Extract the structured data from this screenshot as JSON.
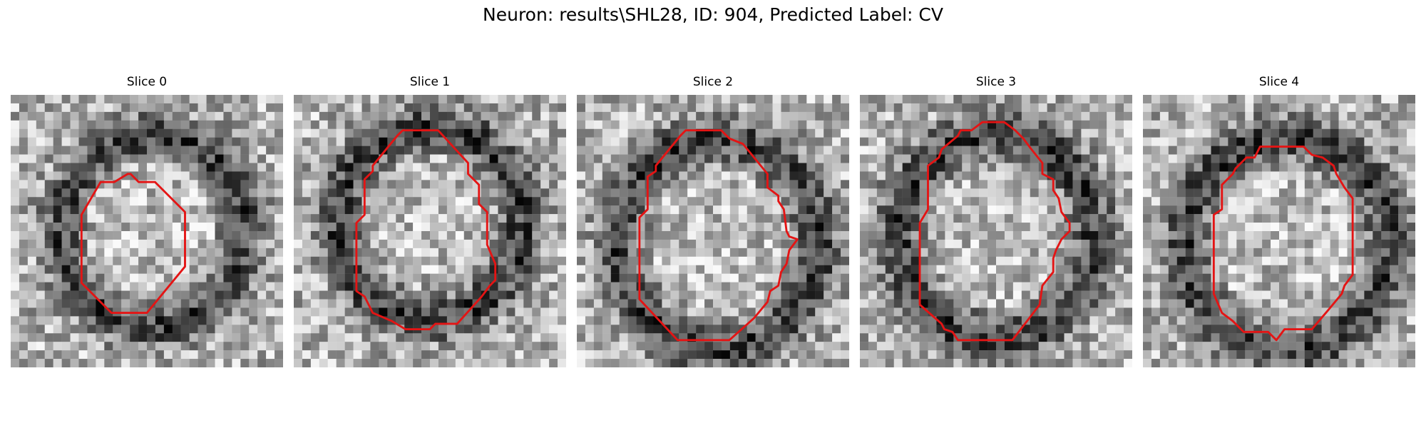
{
  "figure": {
    "title": "Neuron: results\\SHL28, ID: 904, Predicted Label: CV",
    "colormap": "gray",
    "contour_color": "#e41414",
    "background_color": "#ffffff"
  },
  "panels": [
    {
      "title": "Slice 0",
      "seed": 11,
      "ring": [
        0.52,
        0.5,
        0.43,
        0.3
      ],
      "contour": [
        [
          0.44,
          0.29
        ],
        [
          0.47,
          0.32
        ],
        [
          0.53,
          0.32
        ],
        [
          0.64,
          0.43
        ],
        [
          0.64,
          0.63
        ],
        [
          0.5,
          0.8
        ],
        [
          0.37,
          0.8
        ],
        [
          0.26,
          0.69
        ],
        [
          0.26,
          0.44
        ],
        [
          0.33,
          0.32
        ],
        [
          0.38,
          0.32
        ],
        [
          0.43,
          0.29
        ]
      ]
    },
    {
      "title": "Slice 1",
      "seed": 23,
      "ring": [
        0.5,
        0.47,
        0.43,
        0.38
      ],
      "contour": [
        [
          0.4,
          0.13
        ],
        [
          0.53,
          0.13
        ],
        [
          0.64,
          0.25
        ],
        [
          0.64,
          0.29
        ],
        [
          0.68,
          0.33
        ],
        [
          0.68,
          0.4
        ],
        [
          0.71,
          0.43
        ],
        [
          0.71,
          0.46
        ],
        [
          0.71,
          0.55
        ],
        [
          0.74,
          0.62
        ],
        [
          0.74,
          0.68
        ],
        [
          0.72,
          0.7
        ],
        [
          0.69,
          0.74
        ],
        [
          0.6,
          0.84
        ],
        [
          0.52,
          0.84
        ],
        [
          0.5,
          0.86
        ],
        [
          0.41,
          0.86
        ],
        [
          0.36,
          0.83
        ],
        [
          0.29,
          0.8
        ],
        [
          0.26,
          0.74
        ],
        [
          0.23,
          0.72
        ],
        [
          0.23,
          0.47
        ],
        [
          0.26,
          0.44
        ],
        [
          0.26,
          0.31
        ],
        [
          0.29,
          0.28
        ],
        [
          0.29,
          0.26
        ],
        [
          0.38,
          0.15
        ]
      ]
    },
    {
      "title": "Slice 2",
      "seed": 37,
      "ring": [
        0.52,
        0.55,
        0.47,
        0.42
      ],
      "contour": [
        [
          0.4,
          0.13
        ],
        [
          0.53,
          0.13
        ],
        [
          0.56,
          0.16
        ],
        [
          0.61,
          0.18
        ],
        [
          0.7,
          0.29
        ],
        [
          0.7,
          0.34
        ],
        [
          0.74,
          0.37
        ],
        [
          0.74,
          0.39
        ],
        [
          0.76,
          0.42
        ],
        [
          0.77,
          0.5
        ],
        [
          0.78,
          0.52
        ],
        [
          0.81,
          0.53
        ],
        [
          0.78,
          0.57
        ],
        [
          0.77,
          0.62
        ],
        [
          0.75,
          0.65
        ],
        [
          0.74,
          0.7
        ],
        [
          0.71,
          0.72
        ],
        [
          0.7,
          0.76
        ],
        [
          0.65,
          0.82
        ],
        [
          0.56,
          0.9
        ],
        [
          0.37,
          0.9
        ],
        [
          0.23,
          0.75
        ],
        [
          0.23,
          0.45
        ],
        [
          0.26,
          0.42
        ],
        [
          0.26,
          0.3
        ],
        [
          0.29,
          0.28
        ],
        [
          0.29,
          0.26
        ],
        [
          0.38,
          0.15
        ]
      ]
    },
    {
      "title": "Slice 3",
      "seed": 53,
      "ring": [
        0.5,
        0.52,
        0.46,
        0.45
      ],
      "contour": [
        [
          0.45,
          0.1
        ],
        [
          0.53,
          0.1
        ],
        [
          0.57,
          0.13
        ],
        [
          0.6,
          0.16
        ],
        [
          0.63,
          0.2
        ],
        [
          0.67,
          0.25
        ],
        [
          0.67,
          0.29
        ],
        [
          0.71,
          0.31
        ],
        [
          0.71,
          0.35
        ],
        [
          0.73,
          0.38
        ],
        [
          0.74,
          0.43
        ],
        [
          0.77,
          0.47
        ],
        [
          0.77,
          0.5
        ],
        [
          0.74,
          0.53
        ],
        [
          0.72,
          0.57
        ],
        [
          0.71,
          0.6
        ],
        [
          0.71,
          0.65
        ],
        [
          0.67,
          0.7
        ],
        [
          0.66,
          0.77
        ],
        [
          0.56,
          0.9
        ],
        [
          0.36,
          0.9
        ],
        [
          0.34,
          0.87
        ],
        [
          0.31,
          0.86
        ],
        [
          0.3,
          0.84
        ],
        [
          0.22,
          0.77
        ],
        [
          0.22,
          0.47
        ],
        [
          0.25,
          0.42
        ],
        [
          0.25,
          0.26
        ],
        [
          0.29,
          0.23
        ],
        [
          0.3,
          0.2
        ],
        [
          0.36,
          0.15
        ],
        [
          0.37,
          0.13
        ],
        [
          0.41,
          0.13
        ]
      ]
    },
    {
      "title": "Slice 4",
      "seed": 71,
      "ring": [
        0.53,
        0.55,
        0.48,
        0.38
      ],
      "contour": [
        [
          0.43,
          0.19
        ],
        [
          0.59,
          0.19
        ],
        [
          0.62,
          0.22
        ],
        [
          0.66,
          0.23
        ],
        [
          0.7,
          0.26
        ],
        [
          0.71,
          0.29
        ],
        [
          0.74,
          0.34
        ],
        [
          0.77,
          0.38
        ],
        [
          0.77,
          0.66
        ],
        [
          0.74,
          0.7
        ],
        [
          0.73,
          0.73
        ],
        [
          0.68,
          0.79
        ],
        [
          0.62,
          0.86
        ],
        [
          0.52,
          0.86
        ],
        [
          0.49,
          0.9
        ],
        [
          0.46,
          0.87
        ],
        [
          0.37,
          0.87
        ],
        [
          0.33,
          0.83
        ],
        [
          0.29,
          0.8
        ],
        [
          0.26,
          0.73
        ],
        [
          0.26,
          0.44
        ],
        [
          0.29,
          0.42
        ],
        [
          0.29,
          0.33
        ],
        [
          0.33,
          0.29
        ],
        [
          0.34,
          0.27
        ],
        [
          0.38,
          0.23
        ],
        [
          0.41,
          0.23
        ]
      ]
    }
  ]
}
